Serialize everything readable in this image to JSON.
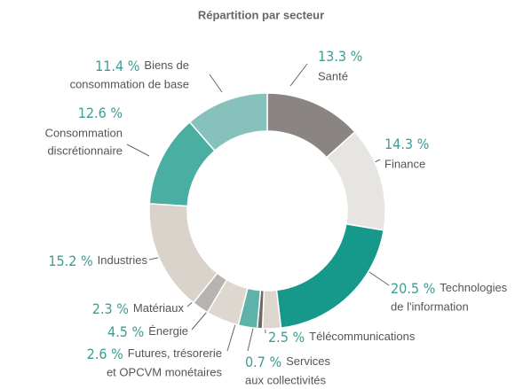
{
  "chart_data": {
    "type": "donut",
    "title": "Répartition par secteur",
    "categories": [
      [
        "Santé"
      ],
      [
        "Finance"
      ],
      [
        "Technologies",
        "de l'information"
      ],
      [
        "Télécommunications"
      ],
      [
        "Services",
        "aux collectivités"
      ],
      [
        "Futures, trésorerie",
        "et OPCVM monétaires"
      ],
      [
        "Énergie"
      ],
      [
        "Matériaux"
      ],
      [
        "Industries"
      ],
      [
        "Consommation",
        "discrétionnaire"
      ],
      [
        "Biens de",
        "consommation de base"
      ]
    ],
    "values": [
      13.3,
      14.3,
      20.5,
      2.5,
      0.7,
      2.6,
      4.5,
      2.3,
      15.2,
      12.6,
      11.4
    ],
    "value_labels": [
      "13.3 %",
      "14.3 %",
      "20.5 %",
      "2.5 %",
      "0.7 %",
      "2.6 %",
      "4.5 %",
      "2.3 %",
      "15.2 %",
      "12.6 %",
      "11.4 %"
    ],
    "colors": [
      "#8a8482",
      "#e7e5e2",
      "#16998b",
      "#dcd6cf",
      "#6f6a68",
      "#5db3aa",
      "#ddd7d0",
      "#b6b3b1",
      "#d9d3cc",
      "#4aaea3",
      "#86c2bb"
    ]
  }
}
